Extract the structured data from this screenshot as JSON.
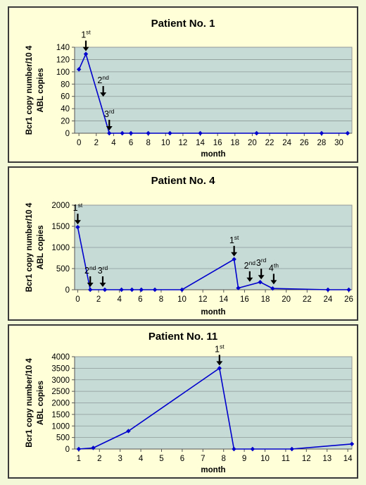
{
  "chart_data": [
    {
      "type": "line",
      "title": "Patient No. 1",
      "xlabel": "month",
      "ylabel": [
        "Bcr1 copy number/10 4",
        "ABL copies"
      ],
      "xlim": [
        -0.5,
        31.5
      ],
      "ylim": [
        0,
        140
      ],
      "xticks": [
        0,
        2,
        4,
        6,
        8,
        10,
        12,
        14,
        16,
        18,
        20,
        22,
        24,
        26,
        28,
        30
      ],
      "yticks": [
        0,
        20,
        40,
        60,
        80,
        100,
        120,
        140
      ],
      "grid": true,
      "color": "#0000cc",
      "x": [
        0,
        0.8,
        3.5,
        5,
        6,
        8,
        10.5,
        14,
        20.5,
        28,
        31
      ],
      "y": [
        104,
        129,
        0,
        0,
        0,
        0,
        0,
        0,
        0,
        0,
        0
      ],
      "annotations": [
        {
          "text": "1",
          "sup": "st",
          "x": 0.8,
          "y": 129
        },
        {
          "text": "2",
          "sup": "nd",
          "x": 2.8,
          "y": 55
        },
        {
          "text": "3",
          "sup": "rd",
          "x": 3.5,
          "y": 0
        }
      ]
    },
    {
      "type": "line",
      "title": "Patient No. 4",
      "xlabel": "month",
      "ylabel": [
        "Bcr1 copy number/10 4",
        "ABL copies"
      ],
      "xlim": [
        -0.3,
        26.3
      ],
      "ylim": [
        0,
        2000
      ],
      "xticks": [
        0,
        2,
        4,
        6,
        8,
        10,
        12,
        14,
        16,
        18,
        20,
        22,
        24,
        26
      ],
      "yticks": [
        0,
        500,
        1000,
        1500,
        2000
      ],
      "grid": true,
      "color": "#0000cc",
      "x": [
        0,
        1.2,
        2.6,
        4.2,
        5.2,
        6.1,
        7.4,
        10,
        15,
        15.4,
        17.5,
        18.7,
        24,
        26
      ],
      "y": [
        1480,
        0,
        0,
        0,
        0,
        0,
        0,
        0,
        720,
        40,
        180,
        30,
        0,
        0
      ],
      "annotations": [
        {
          "text": "1",
          "sup": "st",
          "x": 0,
          "y": 1480
        },
        {
          "text": "2",
          "sup": "nd",
          "x": 1.2,
          "y": 0
        },
        {
          "text": "3",
          "sup": "rd",
          "x": 2.4,
          "y": 0
        },
        {
          "text": "1",
          "sup": "st",
          "x": 15,
          "y": 720
        },
        {
          "text": "2",
          "sup": "nd",
          "x": 16.5,
          "y": 120
        },
        {
          "text": "3",
          "sup": "rd",
          "x": 17.6,
          "y": 180
        },
        {
          "text": "4",
          "sup": "th",
          "x": 18.8,
          "y": 60
        }
      ]
    },
    {
      "type": "line",
      "title": "Patient No. 11",
      "xlabel": "month",
      "ylabel": [
        "Bcr1 copy number/10 4",
        "ABL copies"
      ],
      "xlim": [
        0.8,
        14.2
      ],
      "ylim": [
        0,
        4000
      ],
      "xticks": [
        1,
        2,
        3,
        4,
        5,
        6,
        7,
        8,
        9,
        10,
        11,
        12,
        13,
        14
      ],
      "yticks": [
        0,
        500,
        1000,
        1500,
        2000,
        2500,
        3000,
        3500,
        4000
      ],
      "grid": true,
      "color": "#0000cc",
      "x": [
        1,
        1.7,
        3.4,
        7.8,
        8.5,
        9.4,
        11.3,
        14.2
      ],
      "y": [
        0,
        50,
        780,
        3500,
        0,
        0,
        0,
        220
      ],
      "annotations": [
        {
          "text": "1",
          "sup": "st",
          "x": 7.8,
          "y": 3500
        }
      ]
    }
  ]
}
